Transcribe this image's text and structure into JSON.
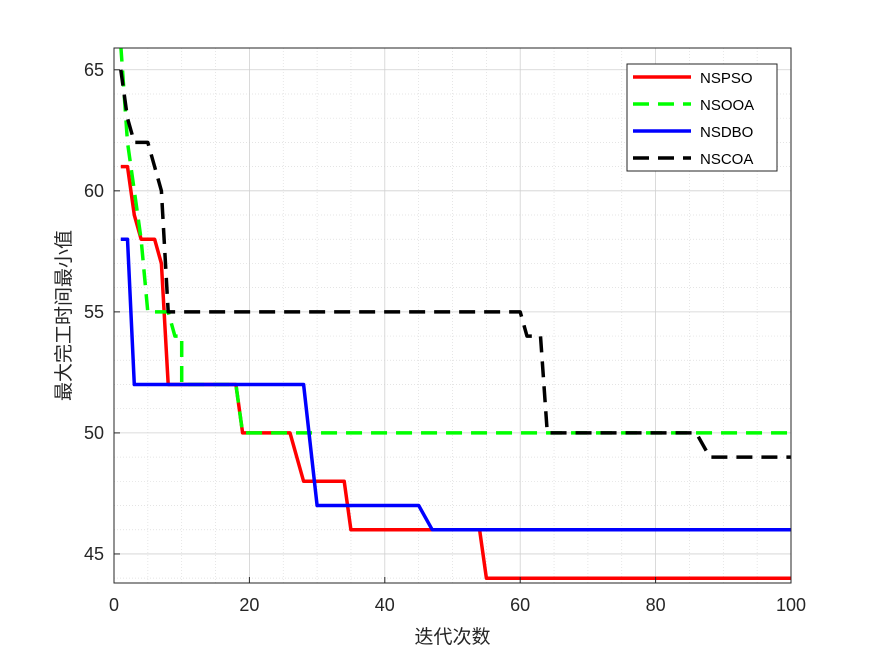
{
  "chart_data": {
    "type": "line",
    "xlabel": "迭代次数",
    "ylabel": "最大完工时间最小值",
    "xlim": [
      0,
      100
    ],
    "ylim": [
      43.8,
      65.9
    ],
    "xticks": [
      0,
      20,
      40,
      60,
      80,
      100
    ],
    "yticks": [
      45,
      50,
      55,
      60,
      65
    ],
    "grid": true,
    "minor_grid": true,
    "legend_position": "top-right",
    "series": [
      {
        "name": "NSPSO",
        "color": "#ff0000",
        "style": "solid",
        "x": [
          1,
          2,
          3,
          4,
          5,
          6,
          7,
          8,
          8,
          18,
          19,
          20,
          26,
          28,
          34,
          35,
          54,
          55,
          100
        ],
        "y": [
          61,
          61,
          59,
          58,
          58,
          58,
          57,
          52,
          52,
          52,
          50,
          50,
          50,
          48,
          48,
          46,
          46,
          44,
          44
        ]
      },
      {
        "name": "NSOOA",
        "color": "#00ff00",
        "style": "dashed",
        "x": [
          1,
          2,
          3,
          4,
          5,
          8,
          9,
          10,
          10,
          18,
          19,
          20,
          100
        ],
        "y": [
          66,
          62,
          60,
          58,
          55,
          55,
          54,
          54,
          52,
          52,
          50,
          50,
          50
        ]
      },
      {
        "name": "NSDBO",
        "color": "#0000ff",
        "style": "solid",
        "x": [
          1,
          2,
          3,
          28,
          30,
          45,
          47,
          100
        ],
        "y": [
          58,
          58,
          52,
          52,
          47,
          47,
          46,
          46
        ]
      },
      {
        "name": "NSCOA",
        "color": "#000000",
        "style": "dashed",
        "x": [
          1,
          2,
          3,
          5,
          7,
          8,
          9,
          60,
          61,
          63,
          64,
          86,
          88,
          100
        ],
        "y": [
          65,
          63,
          62,
          62,
          60,
          55,
          55,
          55,
          54,
          54,
          50,
          50,
          49,
          49
        ]
      }
    ]
  }
}
